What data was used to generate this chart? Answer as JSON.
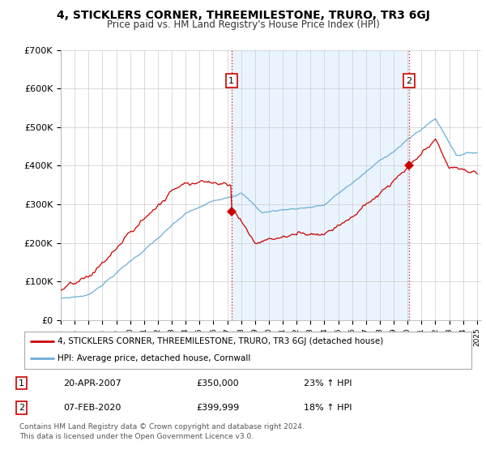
{
  "title": "4, STICKLERS CORNER, THREEMILESTONE, TRURO, TR3 6GJ",
  "subtitle": "Price paid vs. HM Land Registry's House Price Index (HPI)",
  "title_fontsize": 10,
  "subtitle_fontsize": 8.5,
  "ylim": [
    0,
    700000
  ],
  "yticks": [
    0,
    100000,
    200000,
    300000,
    400000,
    500000,
    600000,
    700000
  ],
  "ytick_labels": [
    "£0",
    "£100K",
    "£200K",
    "£300K",
    "£400K",
    "£500K",
    "£600K",
    "£700K"
  ],
  "sale1_year": 2007.3,
  "sale1_price": 350000,
  "sale2_year": 2020.1,
  "sale2_price": 399999,
  "line_color_property": "#cc0000",
  "line_color_hpi": "#6baed6",
  "shade_color": "#ddeeff",
  "legend_label_property": "4, STICKLERS CORNER, THREEMILESTONE, TRURO, TR3 6GJ (detached house)",
  "legend_label_hpi": "HPI: Average price, detached house, Cornwall",
  "footer": "Contains HM Land Registry data © Crown copyright and database right 2024.\nThis data is licensed under the Open Government Licence v3.0.",
  "table_row1": [
    "1",
    "20-APR-2007",
    "£350,000",
    "23% ↑ HPI"
  ],
  "table_row2": [
    "2",
    "07-FEB-2020",
    "£399,999",
    "18% ↑ HPI"
  ],
  "bg_color": "#ffffff",
  "grid_color": "#cccccc"
}
